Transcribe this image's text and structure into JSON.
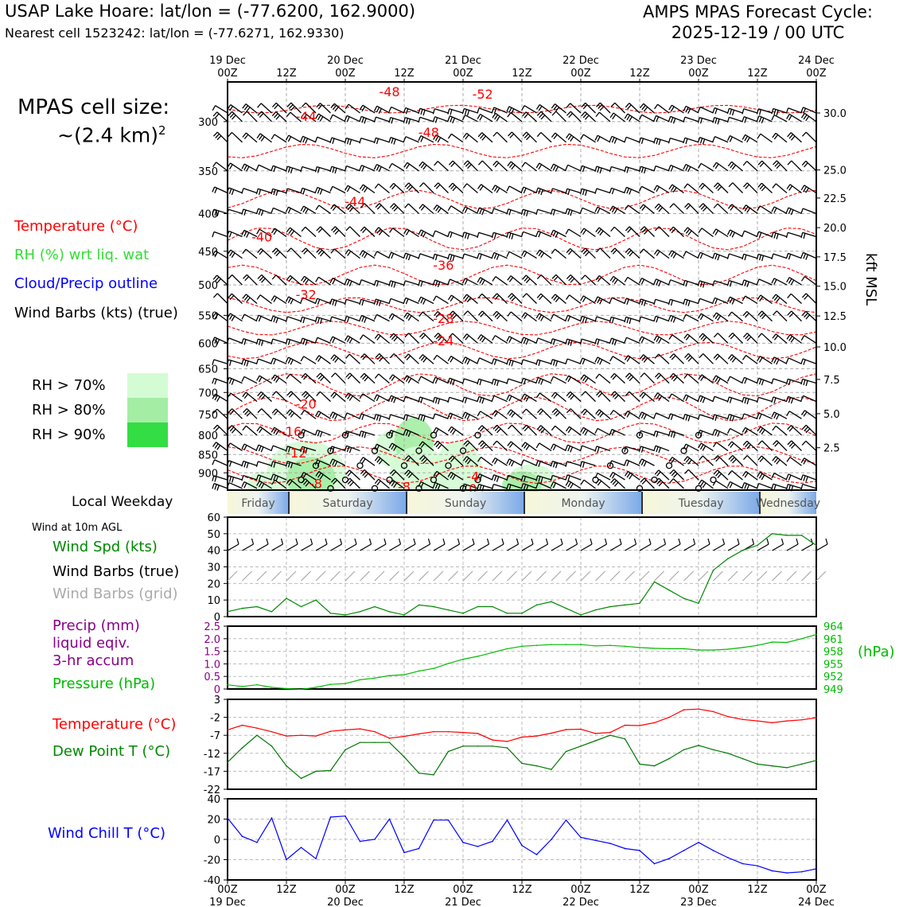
{
  "header": {
    "station_title": "USAP Lake Hoare: lat/lon = (-77.6200, 162.9000)",
    "nearest_cell": "Nearest cell 1523242: lat/lon = (-77.6271, 162.9330)",
    "forecast_line1": "AMPS MPAS Forecast Cycle:",
    "forecast_line2": "2025-12-19 / 00 UTC"
  },
  "cell_size": {
    "line1": "MPAS cell size:",
    "line2": "~(2.4 km)",
    "exponent": "2"
  },
  "legend": {
    "temperature": "Temperature (°C)",
    "rh": "RH (%) wrt liq. wat",
    "cloud": "Cloud/Precip outline",
    "wind_barbs": "Wind Barbs (kts) (true)",
    "rh70": "RH > 70%",
    "rh80": "RH > 80%",
    "rh90": "RH > 90%",
    "local_weekday": "Local Weekday",
    "wind_10m": "Wind at 10m AGL",
    "wind_spd": "Wind Spd (kts)",
    "wind_barbs_true": "Wind Barbs (true)",
    "wind_barbs_grid": "Wind Barbs (grid)",
    "precip1": "Precip (mm)",
    "precip2": "liquid eqiv.",
    "precip3": "3-hr accum",
    "pressure": "Pressure (hPa)",
    "temp2": "Temperature (°C)",
    "dewpoint": "Dew Point T (°C)",
    "windchill": "Wind Chill T (°C)",
    "hpa_unit": "(hPa)",
    "kft_label": "kft MSL"
  },
  "colors": {
    "temp": "#ff0000",
    "rh": "#33dd33",
    "cloud": "#0000ff",
    "wind": "#008800",
    "precip": "#880088",
    "pressure": "#00bb00",
    "dewpoint": "#007700",
    "windchill": "#0000ff",
    "rh70": "#d4fcd4",
    "rh80": "#a4eda4",
    "rh90": "#33dd44"
  },
  "chart_data": [
    {
      "type": "cross-section",
      "x_top_days": [
        "19 Dec",
        "20 Dec",
        "21 Dec",
        "22 Dec",
        "23 Dec",
        "24 Dec"
      ],
      "x_ticks": [
        "00Z",
        "12Z",
        "00Z",
        "12Z",
        "00Z",
        "12Z",
        "00Z",
        "12Z",
        "00Z",
        "12Z",
        "00Z"
      ],
      "xlim_hours": [
        0,
        120
      ],
      "y_pressure_ticks": [
        300,
        350,
        400,
        450,
        500,
        550,
        600,
        650,
        700,
        750,
        800,
        850,
        900
      ],
      "ylim_hPa": [
        265,
        950
      ],
      "y_right_kft": [
        "30.0",
        "25.0",
        "22.5",
        "20.0",
        "17.5",
        "15.0",
        "12.5",
        "10.0",
        "7.5",
        "5.0",
        "2.5"
      ],
      "y_right_kft_hPa": [
        292,
        349,
        381,
        418,
        458,
        502,
        551,
        607,
        672,
        748,
        832
      ],
      "isotherms": [
        {
          "label": "-44",
          "x_hr": 16,
          "p": 295
        },
        {
          "label": "-48",
          "x_hr": 33,
          "p": 273
        },
        {
          "label": "-52",
          "x_hr": 52,
          "p": 275
        },
        {
          "label": "-48",
          "x_hr": 41,
          "p": 310
        },
        {
          "label": "-44",
          "x_hr": 26,
          "p": 385
        },
        {
          "label": "-40",
          "x_hr": 7,
          "p": 430
        },
        {
          "label": "-36",
          "x_hr": 44,
          "p": 470
        },
        {
          "label": "-32",
          "x_hr": 16,
          "p": 515
        },
        {
          "label": "-28",
          "x_hr": 44,
          "p": 555
        },
        {
          "label": "-24",
          "x_hr": 44,
          "p": 595
        },
        {
          "label": "-20",
          "x_hr": 16,
          "p": 725
        },
        {
          "label": "-16",
          "x_hr": 13,
          "p": 790
        },
        {
          "label": "-12",
          "x_hr": 14,
          "p": 845
        },
        {
          "label": "-8",
          "x_hr": 18,
          "p": 930
        },
        {
          "label": "-8",
          "x_hr": 36,
          "p": 940
        },
        {
          "label": "-4",
          "x_hr": 50,
          "p": 910
        },
        {
          "label": "0",
          "x_hr": 50,
          "p": 945
        }
      ],
      "isotherm_lines": [
        {
          "p_start": 285,
          "p_end": 292
        },
        {
          "p_start": 322,
          "p_end": 336
        },
        {
          "p_start": 372,
          "p_end": 394
        },
        {
          "p_start": 418,
          "p_end": 448
        },
        {
          "p_start": 470,
          "p_end": 500
        },
        {
          "p_start": 520,
          "p_end": 545
        },
        {
          "p_start": 560,
          "p_end": 585
        },
        {
          "p_start": 598,
          "p_end": 630
        },
        {
          "p_start": 660,
          "p_end": 708
        },
        {
          "p_start": 710,
          "p_end": 765
        },
        {
          "p_start": 770,
          "p_end": 820
        },
        {
          "p_start": 830,
          "p_end": 875
        },
        {
          "p_start": 880,
          "p_end": 930
        }
      ],
      "rh_patches": [
        {
          "x_hr": 34,
          "p": 835,
          "w_hr": 4,
          "dp": 50,
          "level": 70
        },
        {
          "x_hr": 38,
          "p": 815,
          "w_hr": 4,
          "dp": 60,
          "level": 80
        },
        {
          "x_hr": 47,
          "p": 900,
          "w_hr": 5,
          "dp": 90,
          "level": 70
        },
        {
          "x_hr": 16,
          "p": 900,
          "w_hr": 8,
          "dp": 90,
          "level": 70
        },
        {
          "x_hr": 17,
          "p": 915,
          "w_hr": 5,
          "dp": 60,
          "level": 80
        },
        {
          "x_hr": 7,
          "p": 935,
          "w_hr": 3,
          "dp": 40,
          "level": 70
        },
        {
          "x_hr": 62,
          "p": 925,
          "w_hr": 5,
          "dp": 50,
          "level": 70
        },
        {
          "x_hr": 39,
          "p": 905,
          "w_hr": 6,
          "dp": 80,
          "level": 70
        },
        {
          "x_hr": 60,
          "p": 935,
          "w_hr": 4,
          "dp": 40,
          "level": 80
        }
      ]
    },
    {
      "type": "weekday-band",
      "days": [
        "Friday",
        "Saturday",
        "Sunday",
        "Monday",
        "Tuesday",
        "Wednesday"
      ],
      "day_boundary_hours": [
        0,
        12.5,
        36.5,
        60.5,
        84.5,
        108.5,
        120
      ]
    },
    {
      "type": "line",
      "title": "Wind Spd (kts)",
      "ylim": [
        0,
        60
      ],
      "yticks": [
        0,
        10,
        20,
        30,
        40,
        50,
        60
      ],
      "x_hours": [
        0,
        3,
        6,
        9,
        12,
        15,
        18,
        21,
        24,
        27,
        30,
        33,
        36,
        39,
        42,
        45,
        48,
        51,
        54,
        57,
        60,
        63,
        66,
        69,
        72,
        75,
        78,
        81,
        84,
        87,
        90,
        93,
        96,
        99,
        102,
        105,
        108,
        111,
        114,
        117,
        120
      ],
      "values": [
        3,
        5,
        6,
        3,
        11,
        6,
        10,
        2,
        1,
        3,
        6,
        3,
        1,
        7,
        6,
        4,
        2,
        6,
        6,
        2,
        2,
        7,
        9,
        5,
        1,
        4,
        6,
        7,
        8,
        21,
        16,
        11,
        8,
        28,
        35,
        40,
        43,
        50,
        49,
        49,
        43
      ]
    },
    {
      "type": "line",
      "title": "Precip / Pressure",
      "precip_ylim": [
        0,
        2.5
      ],
      "precip_ticks": [
        "0",
        "0.5",
        "1.0",
        "1.5",
        "2.0",
        "2.5"
      ],
      "pressure_ylim": [
        949,
        964
      ],
      "pressure_ticks": [
        "949",
        "952",
        "955",
        "958",
        "961",
        "964"
      ],
      "x_hours": [
        0,
        3,
        6,
        9,
        12,
        15,
        18,
        21,
        24,
        27,
        30,
        33,
        36,
        39,
        42,
        45,
        48,
        51,
        54,
        57,
        60,
        63,
        66,
        69,
        72,
        75,
        78,
        81,
        84,
        87,
        90,
        93,
        96,
        99,
        102,
        105,
        108,
        111,
        114,
        117,
        120
      ],
      "pressure": [
        950.0,
        949.6,
        950.0,
        949.4,
        949.1,
        948.9,
        949.4,
        950.1,
        950.3,
        951.2,
        951.6,
        952.2,
        952.4,
        953.3,
        953.9,
        955.1,
        956.1,
        956.8,
        957.7,
        958.6,
        959.2,
        959.4,
        959.6,
        959.6,
        959.6,
        959.3,
        959.4,
        959.2,
        958.9,
        958.7,
        958.6,
        958.6,
        958.3,
        958.3,
        958.5,
        958.9,
        959.4,
        960.2,
        960.1,
        961.0,
        962.0
      ]
    },
    {
      "type": "line",
      "title": "Temperature / Dew Point (°C)",
      "ylim": [
        -22,
        3
      ],
      "yticks": [
        "3",
        "-2",
        "-7",
        "-12",
        "-17",
        "-22"
      ],
      "x_hours": [
        0,
        3,
        6,
        9,
        12,
        15,
        18,
        21,
        24,
        27,
        30,
        33,
        36,
        39,
        42,
        45,
        48,
        51,
        54,
        57,
        60,
        63,
        66,
        69,
        72,
        75,
        78,
        81,
        84,
        87,
        90,
        93,
        96,
        99,
        102,
        105,
        108,
        111,
        114,
        117,
        120
      ],
      "temperature": [
        -5.5,
        -4.2,
        -5.0,
        -6.0,
        -7.2,
        -7.0,
        -7.2,
        -5.9,
        -5.5,
        -5.2,
        -6.0,
        -7.8,
        -7.3,
        -6.6,
        -6.0,
        -6.0,
        -6.2,
        -6.5,
        -8.3,
        -8.7,
        -7.5,
        -7.2,
        -6.4,
        -5.4,
        -5.3,
        -6.5,
        -6.2,
        -4.2,
        -4.3,
        -3.5,
        -2.0,
        0.1,
        0.3,
        -0.4,
        -1.8,
        -2.6,
        -3.0,
        -3.5,
        -3.0,
        -2.7,
        -2.1
      ],
      "dewpoint": [
        -14.5,
        -10.5,
        -7.0,
        -10.0,
        -15.5,
        -19.0,
        -17.0,
        -16.8,
        -11.0,
        -9.0,
        -9.0,
        -9.0,
        -13.0,
        -17.5,
        -18.0,
        -11.5,
        -10.0,
        -10.0,
        -10.0,
        -10.5,
        -14.8,
        -15.5,
        -16.5,
        -11.5,
        -10.0,
        -8.5,
        -7.0,
        -8.0,
        -15.0,
        -15.5,
        -13.5,
        -11.0,
        -9.8,
        -11.0,
        -12.0,
        -13.5,
        -15.0,
        -15.5,
        -16.0,
        -15.0,
        -14.0
      ]
    },
    {
      "type": "line",
      "title": "Wind Chill T (°C)",
      "ylim": [
        -40,
        40
      ],
      "yticks": [
        "40",
        "20",
        "0",
        "-20",
        "-40"
      ],
      "x_hours": [
        0,
        3,
        6,
        9,
        12,
        15,
        18,
        21,
        24,
        27,
        30,
        33,
        36,
        39,
        42,
        45,
        48,
        51,
        54,
        57,
        60,
        63,
        66,
        69,
        72,
        75,
        78,
        81,
        84,
        87,
        90,
        93,
        96,
        99,
        102,
        105,
        108,
        111,
        114,
        117,
        120
      ],
      "values": [
        21,
        3,
        -3,
        21,
        -20,
        -8,
        -19,
        22,
        23,
        -2,
        0,
        20,
        -13,
        -9,
        19,
        19,
        -3,
        -7,
        -2,
        19,
        -6,
        -15,
        0,
        19,
        2,
        -1,
        -4,
        -9,
        -11,
        -24,
        -19,
        -11,
        -3,
        -11,
        -18,
        -24,
        -26,
        -31,
        -33,
        -32,
        -29
      ]
    }
  ],
  "bottom_axis": {
    "ticks": [
      "00Z",
      "12Z",
      "00Z",
      "12Z",
      "00Z",
      "12Z",
      "00Z",
      "12Z",
      "00Z",
      "12Z",
      "00Z"
    ],
    "days": [
      "19 Dec",
      "20 Dec",
      "21 Dec",
      "22 Dec",
      "23 Dec",
      "24 Dec"
    ]
  }
}
